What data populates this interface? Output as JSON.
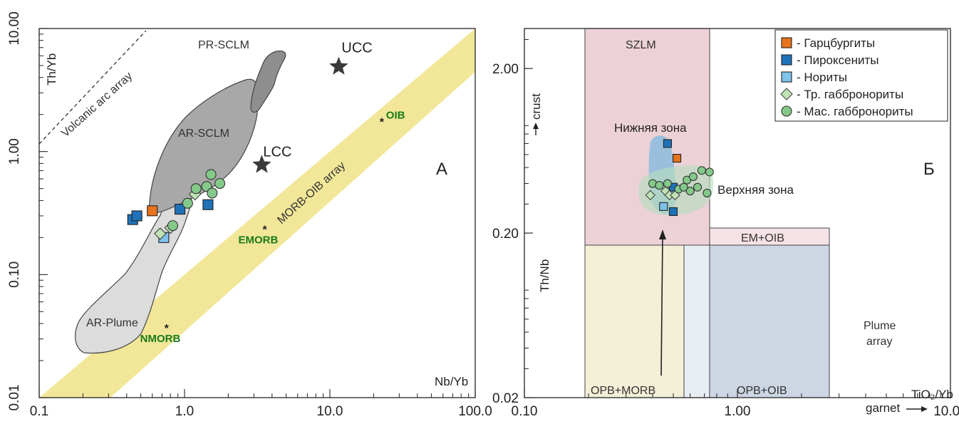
{
  "chart_data": [
    {
      "type": "scatter",
      "panel_label": "А",
      "xlabel": "Nb/Yb",
      "ylabel": "Th/Yb",
      "xscale": "log",
      "yscale": "log",
      "xlim": [
        0.1,
        100.0
      ],
      "ylim": [
        0.01,
        10.0
      ],
      "xticks": [
        "0.1",
        "1.0",
        "10.0",
        "100.0"
      ],
      "yticks": [
        "0.01",
        "0.10",
        "1.00",
        "10.00"
      ],
      "fields": [
        {
          "label": "PR-SCLM"
        },
        {
          "label": "AR-SCLM"
        },
        {
          "label": "AR-Plume"
        },
        {
          "label": "MORB-OIB array"
        },
        {
          "label": "Volcanic arc array"
        }
      ],
      "reference_points": [
        {
          "label": "UCC",
          "x": 11.5,
          "y": 4.9,
          "marker": "star"
        },
        {
          "label": "LCC",
          "x": 3.4,
          "y": 0.78,
          "marker": "star"
        },
        {
          "label": "OIB",
          "x": 23.0,
          "y": 1.8,
          "marker": "asterisk"
        },
        {
          "label": "EMORB",
          "x": 3.6,
          "y": 0.24,
          "marker": "asterisk"
        },
        {
          "label": "NMORB",
          "x": 0.76,
          "y": 0.038,
          "marker": "asterisk"
        }
      ],
      "series": [
        {
          "name": "Гарцбургиты",
          "color": "#e8731a",
          "marker": "square",
          "points": [
            [
              0.6,
              0.33
            ]
          ]
        },
        {
          "name": "Пироксениты",
          "color": "#1f72b8",
          "marker": "square",
          "points": [
            [
              0.44,
              0.28
            ],
            [
              0.47,
              0.3
            ],
            [
              0.93,
              0.34
            ],
            [
              1.45,
              0.37
            ]
          ]
        },
        {
          "name": "Нориты",
          "color": "#7fc2ea",
          "marker": "square",
          "points": [
            [
              0.72,
              0.2
            ]
          ]
        },
        {
          "name": "Тр. габбронориты",
          "color": "#bfe3b4",
          "marker": "diamond",
          "points": [
            [
              0.68,
              0.215
            ],
            [
              0.8,
              0.24
            ],
            [
              1.18,
              0.45
            ]
          ]
        },
        {
          "name": "Мас. габбронориты",
          "color": "#84c98a",
          "marker": "circle",
          "points": [
            [
              0.83,
              0.25
            ],
            [
              1.05,
              0.38
            ],
            [
              1.2,
              0.5
            ],
            [
              1.42,
              0.52
            ],
            [
              1.52,
              0.65
            ],
            [
              1.55,
              0.46
            ],
            [
              1.75,
              0.55
            ]
          ]
        }
      ]
    },
    {
      "type": "scatter",
      "panel_label": "Б",
      "xlabel": "TiO₂/Yb",
      "xlabel_note": "garnet",
      "ylabel": "Th/Nb",
      "ylabel_note": "crust",
      "xscale": "log",
      "yscale": "log",
      "xlim": [
        0.1,
        10.0
      ],
      "ylim": [
        0.02,
        3.5
      ],
      "xticks": [
        "0.10",
        "1.00",
        "10.00"
      ],
      "yticks": [
        "0.02",
        "0.20",
        "2.00"
      ],
      "fields": [
        {
          "label": "SZLM",
          "color": "#ecd1d7"
        },
        {
          "label": "OPB+MORB",
          "color": "#f4efd7"
        },
        {
          "label": "OPB+OIB",
          "color": "#cdd6e3"
        },
        {
          "label": "EM+OIB",
          "color": "#f6e2e6"
        },
        {
          "label": "Plume array"
        }
      ],
      "annotations": [
        "Нижняя зона",
        "Верхняя зона"
      ],
      "series": [
        {
          "name": "Гарцбургиты",
          "color": "#e8731a",
          "marker": "square",
          "points": [
            [
              0.52,
              0.57
            ]
          ]
        },
        {
          "name": "Пироксениты",
          "color": "#1f72b8",
          "marker": "square",
          "points": [
            [
              0.47,
              0.7
            ],
            [
              0.5,
              0.27
            ],
            [
              0.5,
              0.38
            ]
          ]
        },
        {
          "name": "Нориты",
          "color": "#7fc2ea",
          "marker": "square",
          "points": [
            [
              0.45,
              0.29
            ]
          ]
        },
        {
          "name": "Тр. габбронориты",
          "color": "#bfe3b4",
          "marker": "diamond",
          "points": [
            [
              0.39,
              0.34
            ],
            [
              0.46,
              0.36
            ],
            [
              0.48,
              0.34
            ],
            [
              0.51,
              0.34
            ]
          ]
        },
        {
          "name": "Мас. габбронориты",
          "color": "#84c98a",
          "marker": "circle",
          "points": [
            [
              0.4,
              0.4
            ],
            [
              0.43,
              0.39
            ],
            [
              0.47,
              0.4
            ],
            [
              0.53,
              0.37
            ],
            [
              0.56,
              0.38
            ],
            [
              0.58,
              0.42
            ],
            [
              0.62,
              0.44
            ],
            [
              0.6,
              0.36
            ],
            [
              0.65,
              0.38
            ],
            [
              0.68,
              0.48
            ],
            [
              0.74,
              0.47
            ],
            [
              0.72,
              0.35
            ]
          ]
        }
      ]
    }
  ],
  "legend": {
    "items": [
      {
        "label": "- Гарцбургиты",
        "color": "#e8731a",
        "marker": "square"
      },
      {
        "label": "- Пироксениты",
        "color": "#1f72b8",
        "marker": "square"
      },
      {
        "label": "- Нориты",
        "color": "#7fc2ea",
        "marker": "square"
      },
      {
        "label": "- Тр. габбронориты",
        "color": "#bfe3b4",
        "marker": "diamond"
      },
      {
        "label": "- Мас. габбронориты",
        "color": "#84c98a",
        "marker": "circle"
      }
    ]
  }
}
